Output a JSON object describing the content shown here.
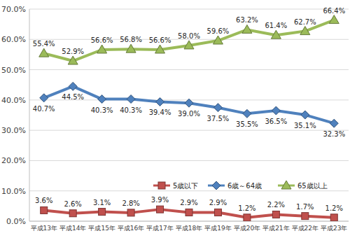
{
  "chart_data": {
    "type": "line",
    "categories": [
      "平成13年",
      "平成14年",
      "平成15年",
      "平成16年",
      "平成17年",
      "平成18年",
      "平成19年",
      "平成20年",
      "平成21年",
      "平成22年",
      "平成23年"
    ],
    "series": [
      {
        "name": "5歳以下",
        "color": "#c0504d",
        "marker": "square",
        "values": [
          3.6,
          2.6,
          3.1,
          2.8,
          3.9,
          2.9,
          2.9,
          1.2,
          2.2,
          1.7,
          1.2
        ],
        "value_labels": [
          "3.6%",
          "2.6%",
          "3.1%",
          "2.8%",
          "3.9%",
          "2.9%",
          "2.9%",
          "1.2%",
          "2.2%",
          "1.7%",
          "1.2%"
        ]
      },
      {
        "name": "6歳～64歳",
        "color": "#4f81bd",
        "marker": "diamond",
        "values": [
          40.7,
          44.5,
          40.3,
          40.3,
          39.4,
          39.0,
          37.5,
          35.5,
          36.5,
          35.1,
          32.3
        ],
        "value_labels": [
          "40.7%",
          "44.5%",
          "40.3%",
          "40.3%",
          "39.4%",
          "39.0%",
          "37.5%",
          "35.5%",
          "36.5%",
          "35.1%",
          "32.3%"
        ]
      },
      {
        "name": "65歳以上",
        "color": "#9bbb59",
        "marker": "triangle",
        "values": [
          55.4,
          52.9,
          56.6,
          56.8,
          56.6,
          58.0,
          59.6,
          63.2,
          61.4,
          62.7,
          66.4
        ],
        "value_labels": [
          "55.4%",
          "52.9%",
          "56.6%",
          "56.8%",
          "56.6%",
          "58.0%",
          "59.6%",
          "63.2%",
          "61.4%",
          "62.7%",
          "66.4%"
        ]
      }
    ],
    "ylim": [
      0,
      70
    ],
    "yticks": [
      {
        "value": 0,
        "label": "0.0%"
      },
      {
        "value": 10,
        "label": "10.0%"
      },
      {
        "value": 20,
        "label": "20.0%"
      },
      {
        "value": 30,
        "label": "30.0%"
      },
      {
        "value": 40,
        "label": "40.0%"
      },
      {
        "value": 50,
        "label": "50.0%"
      },
      {
        "value": 60,
        "label": "60.0%"
      },
      {
        "value": 70,
        "label": "70.0%"
      }
    ],
    "grid": true,
    "legend": "bottom-right",
    "data_labels": true
  }
}
